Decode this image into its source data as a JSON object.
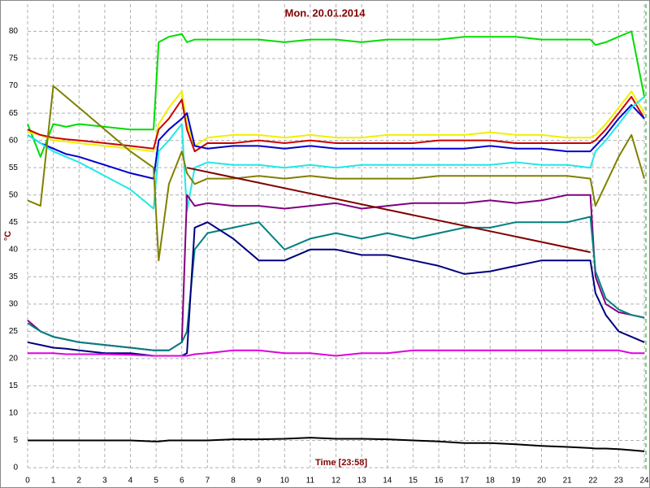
{
  "chart_data": {
    "type": "line",
    "title": "Mon. 20.01.2014",
    "x_label": "Time [23:58]",
    "y_label": "°C",
    "xlim": [
      0,
      24
    ],
    "ylim": [
      0,
      85
    ],
    "xticks": [
      0,
      1,
      2,
      3,
      4,
      5,
      6,
      7,
      8,
      9,
      10,
      11,
      12,
      13,
      14,
      15,
      16,
      17,
      18,
      19,
      20,
      21,
      22,
      23,
      24
    ],
    "yticks": [
      0,
      5,
      10,
      15,
      20,
      25,
      30,
      35,
      40,
      45,
      50,
      55,
      60,
      65,
      70,
      75,
      80
    ],
    "grid": true,
    "x": [
      0,
      0.5,
      1,
      1.5,
      2,
      3,
      4,
      4.9,
      5.1,
      5.5,
      6,
      6.2,
      6.5,
      7,
      8,
      9,
      10,
      11,
      12,
      13,
      14,
      15,
      16,
      17,
      18,
      19,
      20,
      21,
      21.9,
      22.1,
      22.5,
      23,
      23.5,
      24
    ],
    "series": [
      {
        "color": "#00dd00",
        "values": [
          63,
          57,
          63,
          62.5,
          63,
          62.5,
          62,
          62,
          78,
          79,
          79.5,
          78,
          78.5,
          78.5,
          78.5,
          78.5,
          78,
          78.5,
          78.5,
          78,
          78.5,
          78.5,
          78.5,
          79,
          79,
          79,
          78.5,
          78.5,
          78.5,
          77.5,
          78,
          79,
          80,
          68
        ]
      },
      {
        "color": "#f0f000",
        "values": [
          61.5,
          61,
          60,
          59.8,
          59.5,
          59,
          58.5,
          58,
          63,
          66,
          69,
          63,
          59,
          60.5,
          61,
          61,
          60.5,
          61,
          60.5,
          60.5,
          61,
          61,
          61,
          61,
          61.5,
          61,
          61,
          60.5,
          60.5,
          61,
          63,
          66,
          69,
          65
        ]
      },
      {
        "color": "#cc0000",
        "values": [
          62,
          61,
          60.5,
          60.2,
          60,
          59.5,
          59,
          58.5,
          62,
          64,
          67.5,
          62,
          58,
          59.5,
          59.5,
          60,
          59.5,
          60,
          59.5,
          59.5,
          59.5,
          59.5,
          60,
          60,
          60,
          59.5,
          59.5,
          59.5,
          59.5,
          60,
          62,
          65,
          68,
          64
        ]
      },
      {
        "color": "#0000cc",
        "values": [
          61,
          59.5,
          58.5,
          57.5,
          57,
          55.5,
          54,
          53,
          60,
          62,
          64,
          65,
          59,
          58.5,
          59,
          59,
          58.5,
          59,
          58.5,
          58.5,
          58.5,
          58.5,
          58.5,
          58.5,
          59,
          58.5,
          58.5,
          58,
          58,
          59,
          61,
          64,
          66.5,
          64
        ]
      },
      {
        "color": "#20e8e8",
        "values": [
          61,
          59.5,
          58,
          57,
          56,
          53.5,
          51,
          47.5,
          58,
          60,
          63,
          47,
          55,
          56,
          55.5,
          55.5,
          55,
          55.5,
          55,
          55.5,
          55.5,
          55.5,
          55.5,
          55.5,
          55.5,
          56,
          55.5,
          55.5,
          55,
          58,
          60,
          63,
          66,
          68
        ]
      },
      {
        "color": "#808000",
        "values": [
          49,
          48,
          70,
          68,
          66,
          62,
          58,
          55,
          38,
          52,
          58,
          54,
          52,
          53,
          53,
          53.5,
          53,
          53.5,
          53,
          53,
          53,
          53,
          53.5,
          53.5,
          53.5,
          53.5,
          53.5,
          53.5,
          53,
          48,
          52,
          57,
          61,
          53
        ]
      },
      {
        "color": "#800080",
        "values": [
          27,
          25,
          24,
          23.5,
          23,
          22.5,
          22,
          21.5,
          21.5,
          21.5,
          23,
          50,
          48,
          48.5,
          48,
          48,
          47.5,
          48,
          48.5,
          47.5,
          48,
          48.5,
          48.5,
          48.5,
          49,
          48.5,
          49,
          50,
          50,
          35,
          30,
          28.5,
          28,
          27.5
        ]
      },
      {
        "color": "#008080",
        "values": [
          26.5,
          25,
          24,
          23.5,
          23,
          22.5,
          22,
          21.5,
          21.5,
          21.5,
          23,
          25,
          40,
          43,
          44,
          45,
          40,
          42,
          43,
          42,
          43,
          42,
          43,
          44,
          44,
          45,
          45,
          45,
          46,
          36,
          31,
          29,
          28,
          27.5
        ]
      },
      {
        "color": "#000080",
        "values": [
          23,
          22.5,
          22,
          21.8,
          21.5,
          21,
          21,
          20.5,
          20.5,
          20.5,
          20.5,
          21,
          44,
          45,
          42,
          38,
          38,
          40,
          40,
          39,
          39,
          38,
          37,
          35.5,
          36,
          37,
          38,
          38,
          38,
          32,
          28,
          25,
          24,
          23
        ]
      },
      {
        "color": "#e000e0",
        "values": [
          21,
          21,
          21,
          20.8,
          20.8,
          20.8,
          20.7,
          20.5,
          20.5,
          20.5,
          20.5,
          20.5,
          20.8,
          21,
          21.5,
          21.5,
          21,
          21,
          20.5,
          21,
          21,
          21.5,
          21.5,
          21.5,
          21.5,
          21.5,
          21.5,
          21.5,
          21.5,
          21.5,
          21.5,
          21.5,
          21,
          21
        ]
      },
      {
        "color": "#000000",
        "values": [
          5,
          5,
          5,
          5,
          5,
          5,
          5,
          4.8,
          4.8,
          5,
          5,
          5,
          5,
          5,
          5.2,
          5.2,
          5.3,
          5.5,
          5.3,
          5.3,
          5.2,
          5,
          4.8,
          4.5,
          4.5,
          4.3,
          4,
          3.8,
          3.6,
          3.5,
          3.5,
          3.4,
          3.2,
          3
        ]
      },
      {
        "color": "#800000",
        "x": [
          6.2,
          21.9
        ],
        "values": [
          55,
          39.5
        ]
      }
    ]
  }
}
